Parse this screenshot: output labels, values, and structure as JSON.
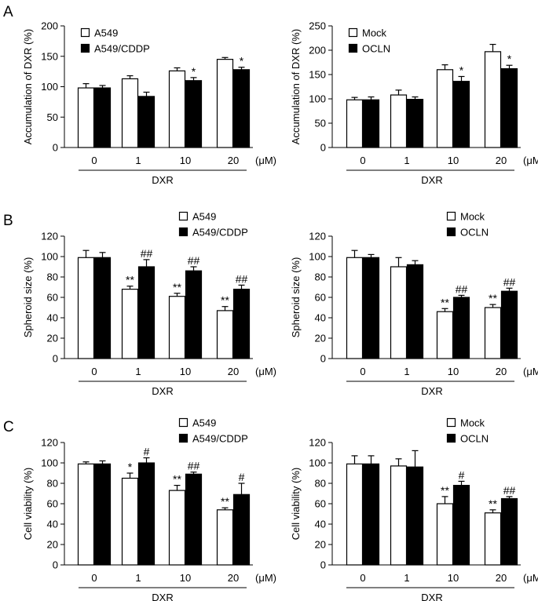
{
  "colors": {
    "series_a": "#ffffff",
    "series_b": "#000000",
    "stroke": "#000000"
  },
  "panel_labels": [
    "A",
    "B",
    "C"
  ],
  "chart_data": [
    {
      "id": "A-left",
      "type": "bar",
      "row": 0,
      "col": 0,
      "ylabel": "Accumulation of DXR  (%)",
      "xlabel": "DXR",
      "x_unit": "(μM)",
      "ylim": [
        0,
        200
      ],
      "yticks": [
        0,
        50,
        100,
        150,
        200
      ],
      "categories": [
        "0",
        "1",
        "10",
        "20"
      ],
      "legend_position": "top-left",
      "series": [
        {
          "name": "A549",
          "values": [
            98,
            113,
            126,
            145
          ],
          "errors": [
            7,
            5,
            5,
            3
          ],
          "sig": [
            "",
            "",
            "",
            ""
          ]
        },
        {
          "name": "A549/CDDP",
          "values": [
            98,
            84,
            110,
            128
          ],
          "errors": [
            4,
            7,
            5,
            4
          ],
          "sig": [
            "",
            "",
            "*",
            "*"
          ]
        }
      ]
    },
    {
      "id": "A-right",
      "type": "bar",
      "row": 0,
      "col": 1,
      "ylabel": "Accumulation of DXR  (%)",
      "xlabel": "DXR",
      "x_unit": "(μM)",
      "ylim": [
        0,
        250
      ],
      "yticks": [
        0,
        50,
        100,
        150,
        200,
        250
      ],
      "categories": [
        "0",
        "1",
        "10",
        "20"
      ],
      "legend_position": "top-left",
      "series": [
        {
          "name": "Mock",
          "values": [
            98,
            108,
            160,
            197
          ],
          "errors": [
            5,
            10,
            10,
            15
          ],
          "sig": [
            "",
            "",
            "",
            ""
          ]
        },
        {
          "name": "OCLN",
          "values": [
            98,
            99,
            136,
            162
          ],
          "errors": [
            6,
            5,
            10,
            7
          ],
          "sig": [
            "",
            "",
            "*",
            "*"
          ]
        }
      ]
    },
    {
      "id": "B-left",
      "type": "bar",
      "row": 1,
      "col": 0,
      "ylabel": "Spheroid size  (%)",
      "xlabel": "DXR",
      "x_unit": "(μM)",
      "ylim": [
        0,
        120
      ],
      "yticks": [
        0,
        20,
        40,
        60,
        80,
        100,
        120
      ],
      "categories": [
        "0",
        "1",
        "10",
        "20"
      ],
      "legend_position": "top-right",
      "series": [
        {
          "name": "A549",
          "values": [
            99,
            68,
            61,
            47
          ],
          "errors": [
            7,
            3,
            3,
            4
          ],
          "sig": [
            "",
            "**",
            "**",
            "**"
          ]
        },
        {
          "name": "A549/CDDP",
          "values": [
            99,
            90,
            86,
            68
          ],
          "errors": [
            5,
            7,
            4,
            4
          ],
          "sig": [
            "",
            "##",
            "##",
            "##"
          ]
        }
      ]
    },
    {
      "id": "B-right",
      "type": "bar",
      "row": 1,
      "col": 1,
      "ylabel": "Spheroid size  (%)",
      "xlabel": "DXR",
      "x_unit": "(μM)",
      "ylim": [
        0,
        120
      ],
      "yticks": [
        0,
        20,
        40,
        60,
        80,
        100,
        120
      ],
      "categories": [
        "0",
        "1",
        "10",
        "20"
      ],
      "legend_position": "top-right",
      "series": [
        {
          "name": "Mock",
          "values": [
            99,
            90,
            46,
            50
          ],
          "errors": [
            7,
            9,
            3,
            3
          ],
          "sig": [
            "",
            "",
            "**",
            "**"
          ]
        },
        {
          "name": "OCLN",
          "values": [
            99,
            92,
            60,
            66
          ],
          "errors": [
            3,
            4,
            2,
            3
          ],
          "sig": [
            "",
            "",
            "##",
            "##"
          ]
        }
      ]
    },
    {
      "id": "C-left",
      "type": "bar",
      "row": 2,
      "col": 0,
      "ylabel": "Cell viability  (%)",
      "xlabel": "DXR",
      "x_unit": "(μM)",
      "ylim": [
        0,
        120
      ],
      "yticks": [
        0,
        20,
        40,
        60,
        80,
        100,
        120
      ],
      "categories": [
        "0",
        "1",
        "10",
        "20"
      ],
      "legend_position": "top-right",
      "series": [
        {
          "name": "A549",
          "values": [
            99,
            85,
            73,
            54
          ],
          "errors": [
            2,
            5,
            5,
            2
          ],
          "sig": [
            "",
            "*",
            "**",
            "**"
          ]
        },
        {
          "name": "A549/CDDP",
          "values": [
            99,
            100,
            89,
            69
          ],
          "errors": [
            3,
            5,
            2,
            11
          ],
          "sig": [
            "",
            "#",
            "##",
            "#"
          ]
        }
      ]
    },
    {
      "id": "C-right",
      "type": "bar",
      "row": 2,
      "col": 1,
      "ylabel": "Cell viability  (%)",
      "xlabel": "DXR",
      "x_unit": "(μM)",
      "ylim": [
        0,
        120
      ],
      "yticks": [
        0,
        20,
        40,
        60,
        80,
        100,
        120
      ],
      "categories": [
        "0",
        "1",
        "10",
        "20"
      ],
      "legend_position": "top-right",
      "series": [
        {
          "name": "Mock",
          "values": [
            99,
            97,
            60,
            51
          ],
          "errors": [
            8,
            7,
            7,
            3
          ],
          "sig": [
            "",
            "",
            "**",
            "**"
          ]
        },
        {
          "name": "OCLN",
          "values": [
            99,
            96,
            78,
            65
          ],
          "errors": [
            8,
            16,
            4,
            2
          ],
          "sig": [
            "",
            "",
            "#",
            "##"
          ]
        }
      ]
    }
  ]
}
